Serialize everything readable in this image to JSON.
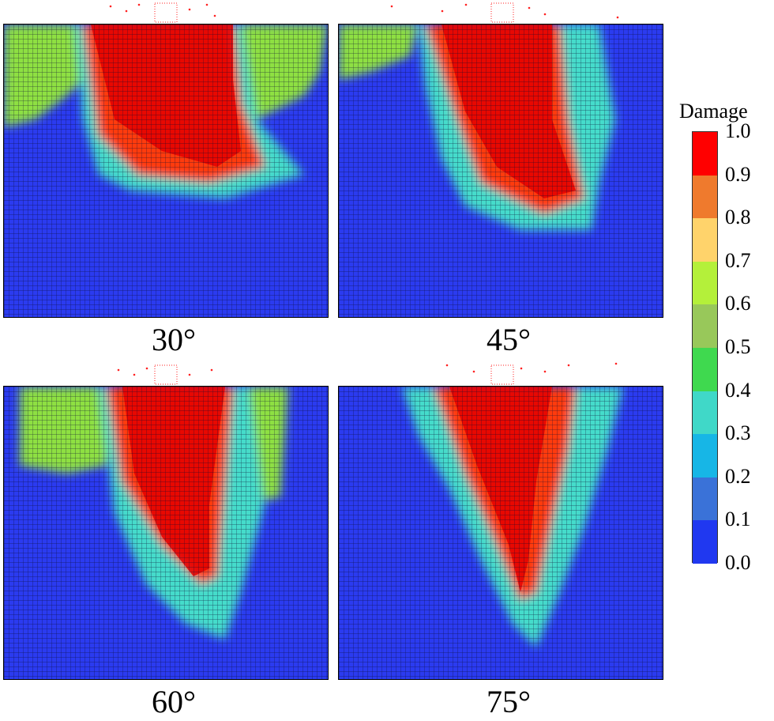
{
  "panels": [
    {
      "label": "30°",
      "angle": 30
    },
    {
      "label": "45°",
      "angle": 45
    },
    {
      "label": "60°",
      "angle": 60
    },
    {
      "label": "75°",
      "angle": 75
    }
  ],
  "legend": {
    "title": "Damage",
    "ticks": [
      "1.0",
      "0.9",
      "0.8",
      "0.7",
      "0.6",
      "0.5",
      "0.4",
      "0.3",
      "0.2",
      "0.1",
      "0.0"
    ],
    "colors": [
      "#ff0000",
      "#ef7a2d",
      "#ffd36b",
      "#b4f03a",
      "#98c85a",
      "#3fd94f",
      "#40d8c8",
      "#17b6e6",
      "#3a72d8",
      "#2038f0"
    ]
  }
}
